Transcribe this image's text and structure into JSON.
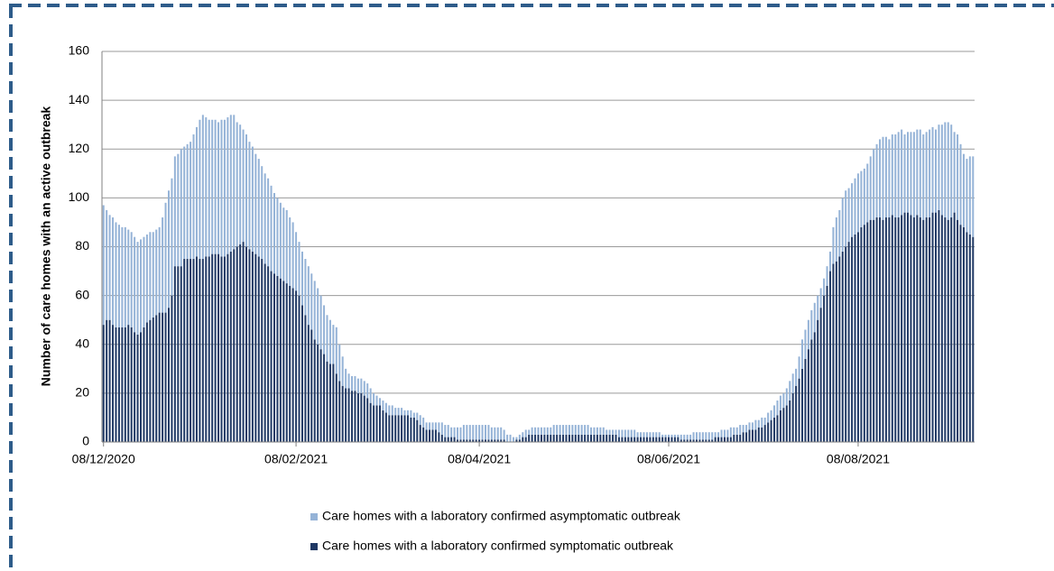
{
  "chart_data": {
    "type": "stacked-bar",
    "y_label": "Number of care homes with an active outbreak",
    "ylim": [
      0,
      160
    ],
    "yticks": [
      0,
      20,
      40,
      60,
      80,
      100,
      120,
      140,
      160
    ],
    "grid": true,
    "categories": [
      "08/12/2020",
      null,
      null,
      null,
      null,
      null,
      null,
      null,
      null,
      null,
      null,
      null,
      null,
      null,
      null,
      null,
      null,
      null,
      null,
      null,
      null,
      null,
      null,
      null,
      null,
      null,
      null,
      null,
      null,
      null,
      null,
      null,
      null,
      null,
      null,
      null,
      null,
      null,
      null,
      null,
      null,
      null,
      null,
      null,
      null,
      null,
      null,
      null,
      null,
      null,
      null,
      null,
      null,
      null,
      null,
      null,
      null,
      null,
      null,
      null,
      null,
      null,
      "08/02/2021",
      null,
      null,
      null,
      null,
      null,
      null,
      null,
      null,
      null,
      null,
      null,
      null,
      null,
      null,
      null,
      null,
      null,
      null,
      null,
      null,
      null,
      null,
      null,
      null,
      null,
      null,
      null,
      null,
      null,
      null,
      null,
      null,
      null,
      null,
      null,
      null,
      null,
      null,
      null,
      null,
      null,
      null,
      null,
      null,
      null,
      null,
      null,
      null,
      null,
      null,
      null,
      null,
      null,
      null,
      null,
      null,
      null,
      null,
      "08/04/2021",
      null,
      null,
      null,
      null,
      null,
      null,
      null,
      null,
      null,
      null,
      null,
      null,
      null,
      null,
      null,
      null,
      null,
      null,
      null,
      null,
      null,
      null,
      null,
      null,
      null,
      null,
      null,
      null,
      null,
      null,
      null,
      null,
      null,
      null,
      null,
      null,
      null,
      null,
      null,
      null,
      null,
      null,
      null,
      null,
      null,
      null,
      null,
      null,
      null,
      null,
      null,
      null,
      null,
      null,
      null,
      null,
      null,
      null,
      null,
      null,
      "08/06/2021",
      null,
      null,
      null,
      null,
      null,
      null,
      null,
      null,
      null,
      null,
      null,
      null,
      null,
      null,
      null,
      null,
      null,
      null,
      null,
      null,
      null,
      null,
      null,
      null,
      null,
      null,
      null,
      null,
      null,
      null,
      null,
      null,
      null,
      null,
      null,
      null,
      null,
      null,
      null,
      null,
      null,
      null,
      null,
      null,
      null,
      null,
      null,
      null,
      null,
      null,
      null,
      null,
      null,
      null,
      null,
      null,
      null,
      null,
      null,
      null,
      "08/08/2021",
      null,
      null,
      null,
      null,
      null,
      null,
      null,
      null,
      null,
      null,
      null,
      null,
      null,
      null,
      null,
      null,
      null,
      null,
      null,
      null,
      null,
      null,
      null,
      null,
      null,
      null,
      null,
      null,
      null,
      null,
      null,
      null,
      null,
      null,
      null,
      null,
      null
    ],
    "series": [
      {
        "name": "Care homes with a laboratory confirmed asymptomatic outbreak",
        "color": "#95b3d7",
        "values": [
          49,
          45,
          43,
          44,
          43,
          42,
          41,
          41,
          39,
          39,
          39,
          38,
          38,
          37,
          36,
          36,
          35,
          35,
          35,
          39,
          45,
          48,
          48,
          45,
          46,
          48,
          46,
          47,
          48,
          51,
          53,
          57,
          59,
          57,
          56,
          55,
          55,
          54,
          56,
          56,
          56,
          56,
          55,
          51,
          49,
          46,
          46,
          44,
          43,
          41,
          40,
          38,
          37,
          36,
          35,
          33,
          32,
          31,
          30,
          30,
          28,
          27,
          24,
          22,
          22,
          23,
          24,
          23,
          24,
          23,
          22,
          20,
          19,
          18,
          16,
          19,
          15,
          12,
          8,
          6,
          6,
          6,
          6,
          6,
          6,
          6,
          6,
          5,
          4,
          3,
          4,
          4,
          4,
          4,
          3,
          3,
          3,
          2,
          2,
          3,
          2,
          3,
          4,
          4,
          3,
          3,
          3,
          3,
          4,
          5,
          5,
          5,
          4,
          4,
          5,
          5,
          6,
          6,
          6,
          6,
          6,
          6,
          6,
          6,
          6,
          5,
          5,
          5,
          5,
          4,
          3,
          3,
          2,
          1,
          2,
          2,
          3,
          2,
          3,
          3,
          3,
          3,
          3,
          3,
          3,
          4,
          4,
          4,
          4,
          4,
          4,
          4,
          4,
          4,
          4,
          4,
          4,
          3,
          3,
          3,
          3,
          3,
          2,
          2,
          2,
          2,
          3,
          3,
          3,
          3,
          3,
          3,
          2,
          2,
          2,
          2,
          2,
          2,
          2,
          2,
          1,
          1,
          1,
          1,
          1,
          1,
          2,
          2,
          2,
          2,
          3,
          3,
          3,
          3,
          3,
          3,
          3,
          2,
          2,
          3,
          3,
          3,
          4,
          3,
          3,
          4,
          3,
          3,
          3,
          3,
          4,
          3,
          4,
          3,
          4,
          4,
          5,
          6,
          6,
          6,
          7,
          8,
          8,
          7,
          9,
          12,
          12,
          12,
          12,
          12,
          10,
          8,
          7,
          8,
          8,
          15,
          18,
          19,
          22,
          23,
          22,
          22,
          23,
          24,
          23,
          23,
          24,
          26,
          29,
          30,
          32,
          34,
          33,
          32,
          33,
          34,
          35,
          35,
          32,
          33,
          34,
          35,
          35,
          36,
          35,
          35,
          36,
          35,
          34,
          35,
          37,
          39,
          40,
          38,
          33,
          35,
          33,
          30,
          30,
          32,
          33
        ]
      },
      {
        "name": "Care homes with a laboratory confirmed symptomatic outbreak",
        "color": "#1f3864",
        "values": [
          48,
          50,
          50,
          48,
          47,
          47,
          47,
          47,
          48,
          47,
          45,
          44,
          45,
          47,
          49,
          50,
          51,
          52,
          53,
          53,
          53,
          55,
          60,
          72,
          72,
          72,
          75,
          75,
          75,
          75,
          76,
          75,
          75,
          76,
          76,
          77,
          77,
          77,
          76,
          76,
          77,
          78,
          79,
          80,
          81,
          82,
          80,
          79,
          78,
          77,
          76,
          75,
          73,
          72,
          70,
          69,
          68,
          67,
          66,
          65,
          64,
          63,
          62,
          60,
          56,
          52,
          48,
          46,
          42,
          40,
          38,
          36,
          33,
          32,
          32,
          28,
          25,
          23,
          22,
          22,
          21,
          21,
          20,
          20,
          19,
          18,
          16,
          15,
          15,
          15,
          13,
          12,
          11,
          11,
          11,
          11,
          11,
          11,
          11,
          10,
          10,
          9,
          7,
          6,
          5,
          5,
          5,
          5,
          4,
          3,
          2,
          2,
          2,
          2,
          1,
          1,
          1,
          1,
          1,
          1,
          1,
          1,
          1,
          1,
          1,
          1,
          1,
          1,
          1,
          1,
          0,
          0,
          0,
          1,
          1,
          2,
          2,
          3,
          3,
          3,
          3,
          3,
          3,
          3,
          3,
          3,
          3,
          3,
          3,
          3,
          3,
          3,
          3,
          3,
          3,
          3,
          3,
          3,
          3,
          3,
          3,
          3,
          3,
          3,
          3,
          3,
          2,
          2,
          2,
          2,
          2,
          2,
          2,
          2,
          2,
          2,
          2,
          2,
          2,
          2,
          2,
          2,
          2,
          2,
          2,
          2,
          1,
          1,
          1,
          1,
          1,
          1,
          1,
          1,
          1,
          1,
          1,
          2,
          2,
          2,
          2,
          2,
          2,
          3,
          3,
          3,
          4,
          4,
          5,
          5,
          5,
          6,
          6,
          7,
          8,
          9,
          10,
          11,
          13,
          14,
          15,
          17,
          20,
          23,
          26,
          30,
          34,
          38,
          42,
          45,
          50,
          55,
          60,
          64,
          70,
          73,
          74,
          76,
          78,
          80,
          82,
          84,
          85,
          86,
          88,
          89,
          90,
          91,
          91,
          92,
          92,
          91,
          92,
          92,
          93,
          92,
          92,
          93,
          94,
          94,
          93,
          92,
          93,
          92,
          91,
          92,
          92,
          94,
          94,
          95,
          93,
          92,
          91,
          92,
          94,
          91,
          89,
          88,
          86,
          85,
          84
        ]
      }
    ]
  }
}
